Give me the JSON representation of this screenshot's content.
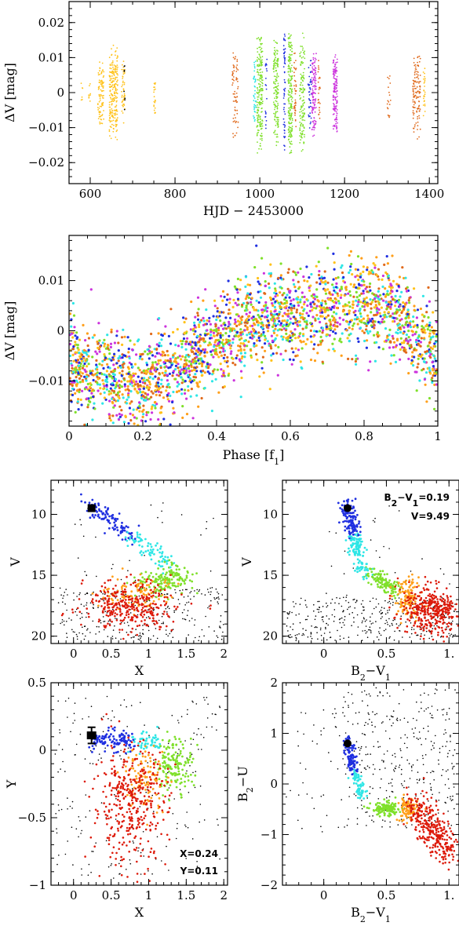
{
  "figure": {
    "colors": {
      "orange": "#e06a1c",
      "gold": "#ffc21a",
      "amber": "#ff9f1a",
      "green": "#7fe02a",
      "cyan": "#2ee6e6",
      "blue": "#1f2fe0",
      "purple": "#cc33dd",
      "red": "#dd1a0a",
      "black": "#000000"
    }
  },
  "chart_data": [
    {
      "id": "light-curve",
      "type": "scatter",
      "xlabel": "HJD − 2453000",
      "ylabel": "ΔV [mag]",
      "xlim": [
        550,
        1420
      ],
      "ylim": [
        0.026,
        -0.026
      ],
      "xticks": [
        "600",
        "800",
        "1000",
        "1200",
        "1400"
      ],
      "yticks": [
        "−0.02",
        "−0.01",
        "0",
        "0.01",
        "0.02"
      ],
      "ytick_values": [
        -0.02,
        -0.01,
        0,
        0.01,
        0.02
      ],
      "xtick_values": [
        600,
        800,
        1000,
        1200,
        1400
      ],
      "bands": [
        {
          "x": 580,
          "w": 4,
          "amp": 0.004,
          "color": "gold",
          "n": 6
        },
        {
          "x": 598,
          "w": 5,
          "amp": 0.006,
          "color": "gold",
          "n": 8
        },
        {
          "x": 625,
          "w": 14,
          "amp": 0.011,
          "color": "gold",
          "n": 90
        },
        {
          "x": 655,
          "w": 20,
          "amp": 0.014,
          "color": "gold",
          "n": 220
        },
        {
          "x": 678,
          "w": 8,
          "amp": 0.011,
          "color": "gold",
          "n": 50
        },
        {
          "x": 681,
          "w": 3,
          "amp": 0.01,
          "color": "black",
          "n": 8
        },
        {
          "x": 752,
          "w": 4,
          "amp": 0.007,
          "color": "gold",
          "n": 20
        },
        {
          "x": 942,
          "w": 14,
          "amp": 0.014,
          "color": "orange",
          "n": 70
        },
        {
          "x": 988,
          "w": 6,
          "amp": 0.011,
          "color": "cyan",
          "n": 40
        },
        {
          "x": 1000,
          "w": 14,
          "amp": 0.018,
          "color": "green",
          "n": 200
        },
        {
          "x": 1015,
          "w": 4,
          "amp": 0.012,
          "color": "blue",
          "n": 20
        },
        {
          "x": 1038,
          "w": 12,
          "amp": 0.016,
          "color": "green",
          "n": 150
        },
        {
          "x": 1058,
          "w": 4,
          "amp": 0.02,
          "color": "blue",
          "n": 60
        },
        {
          "x": 1072,
          "w": 10,
          "amp": 0.02,
          "color": "green",
          "n": 200
        },
        {
          "x": 1083,
          "w": 6,
          "amp": 0.012,
          "color": "orange",
          "n": 40
        },
        {
          "x": 1100,
          "w": 12,
          "amp": 0.018,
          "color": "green",
          "n": 130
        },
        {
          "x": 1118,
          "w": 8,
          "amp": 0.012,
          "color": "blue",
          "n": 40
        },
        {
          "x": 1128,
          "w": 10,
          "amp": 0.014,
          "color": "purple",
          "n": 120
        },
        {
          "x": 1140,
          "w": 5,
          "amp": 0.01,
          "color": "orange",
          "n": 25
        },
        {
          "x": 1178,
          "w": 10,
          "amp": 0.012,
          "color": "purple",
          "n": 140
        },
        {
          "x": 1305,
          "w": 8,
          "amp": 0.01,
          "color": "orange",
          "n": 18
        },
        {
          "x": 1370,
          "w": 18,
          "amp": 0.014,
          "color": "orange",
          "n": 120
        },
        {
          "x": 1388,
          "w": 4,
          "amp": 0.008,
          "color": "gold",
          "n": 25
        }
      ]
    },
    {
      "id": "phase-curve",
      "type": "scatter",
      "xlabel": "Phase [f1]",
      "ylabel": "ΔV [mag]",
      "xlim": [
        0,
        1
      ],
      "ylim": [
        0.019,
        -0.019
      ],
      "xticks": [
        "0",
        "0.2",
        "0.4",
        "0.6",
        "0.8",
        "1"
      ],
      "xtick_values": [
        0,
        0.2,
        0.4,
        0.6,
        0.8,
        1
      ],
      "yticks": [
        "−0.01",
        "0",
        "0.01"
      ],
      "ytick_values": [
        -0.01,
        0,
        0.01
      ],
      "profile": [
        [
          0,
          -0.006
        ],
        [
          0.1,
          -0.009
        ],
        [
          0.2,
          -0.011
        ],
        [
          0.3,
          -0.007
        ],
        [
          0.4,
          -0.002
        ],
        [
          0.5,
          0.002
        ],
        [
          0.6,
          0.003
        ],
        [
          0.7,
          0.004
        ],
        [
          0.8,
          0.005
        ],
        [
          0.9,
          0.003
        ],
        [
          1.0,
          -0.006
        ]
      ],
      "series_colors": [
        "green",
        "gold",
        "blue",
        "amber",
        "purple",
        "cyan",
        "orange"
      ],
      "n": 2600
    },
    {
      "id": "cmd-v-x",
      "type": "scatter",
      "xlabel": "X",
      "ylabel": "V",
      "xlim": [
        -0.3,
        2.05
      ],
      "ylim": [
        7.2,
        20.6
      ],
      "xticks": [
        "0",
        "0.5",
        "1",
        "1.5",
        "2"
      ],
      "xtick_values": [
        0,
        0.5,
        1,
        1.5,
        2
      ],
      "yticks": [
        "10",
        "15",
        "20"
      ],
      "ytick_values": [
        10,
        15,
        20
      ],
      "star": {
        "x": 0.24,
        "y": 9.49,
        "err_y": 0.3
      }
    },
    {
      "id": "cmd-v-bv",
      "type": "scatter",
      "xlabel": "B2−V1",
      "ylabel": "V",
      "xlim": [
        -0.33,
        1.08
      ],
      "ylim": [
        7.2,
        20.6
      ],
      "xticks": [
        "0",
        "0.5",
        "1."
      ],
      "xtick_values": [
        0,
        0.5,
        1
      ],
      "yticks": [
        "10",
        "15",
        "20"
      ],
      "ytick_values": [
        10,
        15,
        20
      ],
      "star": {
        "x": 0.19,
        "y": 9.49
      },
      "annotations": [
        "B2−V1=0.19",
        "V=9.49"
      ]
    },
    {
      "id": "ccd-y-x",
      "type": "scatter",
      "xlabel": "X",
      "ylabel": "Y",
      "xlim": [
        -0.3,
        2.05
      ],
      "ylim": [
        0.5,
        -1.0
      ],
      "xticks": [
        "0",
        "0.5",
        "1",
        "1.5",
        "2"
      ],
      "xtick_values": [
        0,
        0.5,
        1,
        1.5,
        2
      ],
      "yticks": [
        "0.5",
        "0",
        "−0.5",
        "−1"
      ],
      "ytick_values": [
        0.5,
        0,
        -0.5,
        -1
      ],
      "star": {
        "x": 0.24,
        "y": 0.11,
        "err_y": 0.06
      },
      "annotations": [
        "X=0.24",
        "Y=0.11"
      ]
    },
    {
      "id": "ccd-bu-bv",
      "type": "scatter",
      "xlabel": "B2−V1",
      "ylabel": "B2−U",
      "xlim": [
        -0.33,
        1.08
      ],
      "ylim": [
        2.0,
        -2.0
      ],
      "xticks": [
        "0",
        "0.5",
        "1."
      ],
      "xtick_values": [
        0,
        0.5,
        1
      ],
      "yticks": [
        "2",
        "1",
        "0",
        "−1",
        "−2"
      ],
      "ytick_values": [
        2,
        1,
        0,
        -1,
        -2
      ],
      "star": {
        "x": 0.19,
        "y": 0.8
      }
    }
  ]
}
